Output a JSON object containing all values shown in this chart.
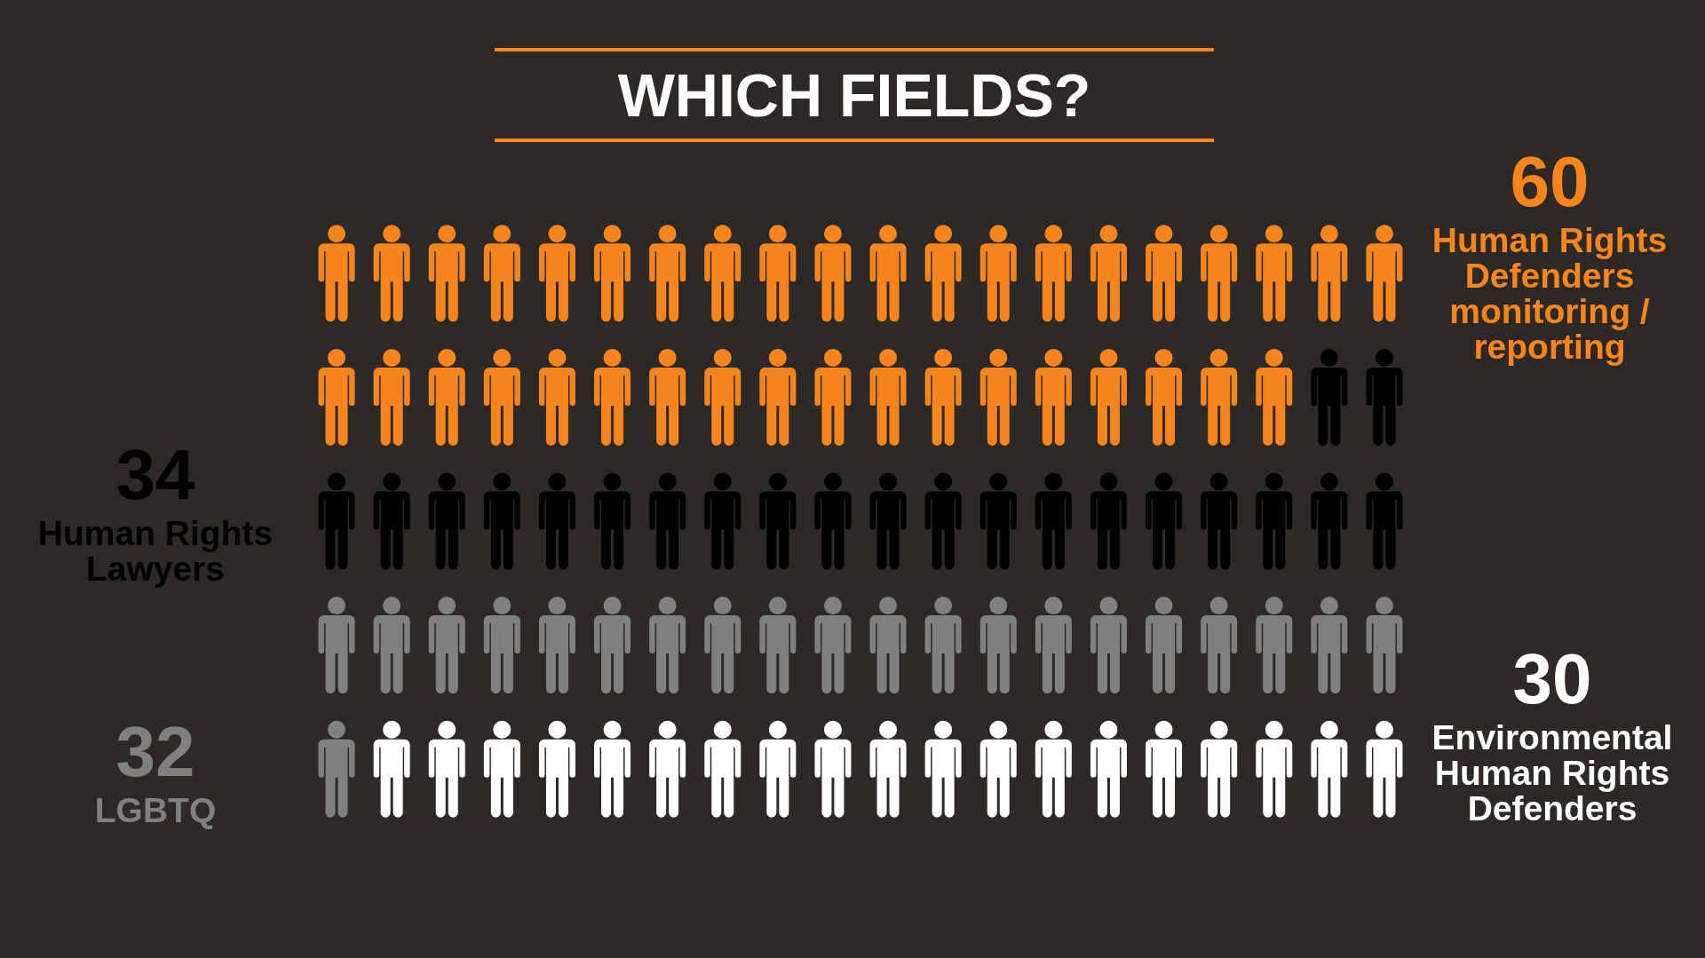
{
  "chart_data": {
    "type": "other",
    "title": "WHICH FIELDS?",
    "categories": [
      "Human Rights Defenders monitoring / reporting",
      "Human Rights Lawyers",
      "LGBTQ",
      "Environmental Human Rights Defenders"
    ],
    "values": [
      60,
      34,
      32,
      30
    ],
    "colors": [
      "#f7851e",
      "#000000",
      "#808080",
      "#ffffff"
    ],
    "data_labels": true
  }
}
